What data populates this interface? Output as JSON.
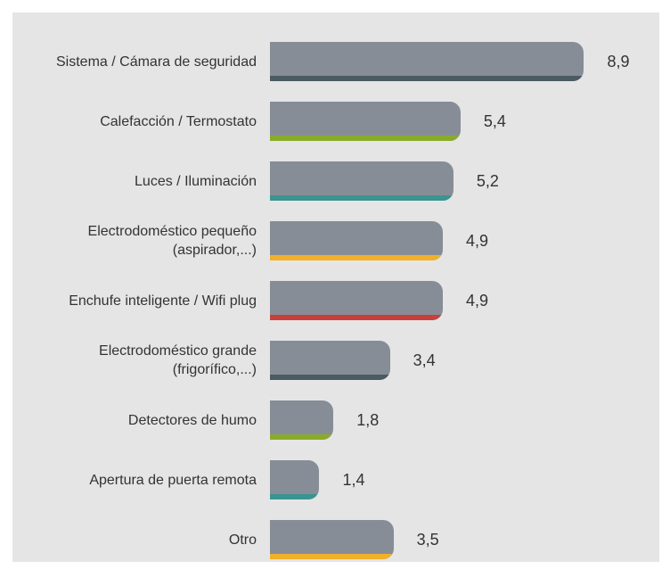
{
  "chart_data": {
    "type": "barh",
    "categories": [
      "Sistema / Cámara de seguridad",
      "Calefacción / Termostato",
      "Luces / Iluminación",
      "Electrodoméstico pequeño (aspirador,...)",
      "Enchufe inteligente / Wifi plug",
      "Electrodoméstico grande (frigorífico,...)",
      "Detectores de humo",
      "Apertura de puerta remota",
      "Otro"
    ],
    "values": [
      8.9,
      5.4,
      5.2,
      4.9,
      4.9,
      3.4,
      1.8,
      1.4,
      3.5
    ],
    "value_labels": [
      "8,9",
      "5,4",
      "5,2",
      "4,9",
      "4,9",
      "3,4",
      "1,8",
      "1,4",
      "3,5"
    ],
    "color": "#878d96",
    "accent_colors": [
      "#4b5a63",
      "#8aab2a",
      "#3a9490",
      "#f0b02a",
      "#c9403a",
      "#4b5a63",
      "#8aab2a",
      "#3a9490",
      "#f0b02a"
    ]
  }
}
